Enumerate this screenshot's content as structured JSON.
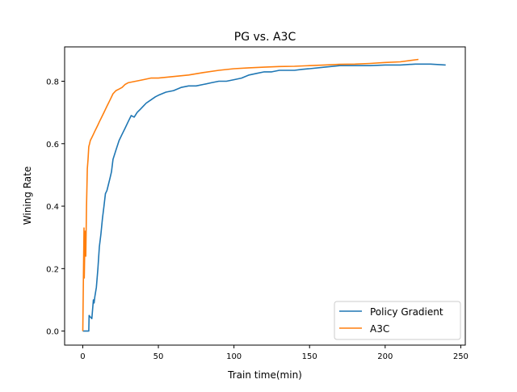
{
  "chart_data": {
    "type": "line",
    "title": "PG vs. A3C",
    "xlabel": "Train time(min)",
    "ylabel": "Wining Rate",
    "xlim": [
      -12,
      253
    ],
    "ylim": [
      -0.045,
      0.91
    ],
    "xticks": [
      0,
      50,
      100,
      150,
      200,
      250
    ],
    "xtick_labels": [
      "0",
      "50",
      "100",
      "150",
      "200",
      "250"
    ],
    "yticks": [
      0.0,
      0.2,
      0.4,
      0.6,
      0.8
    ],
    "ytick_labels": [
      "0.0",
      "0.2",
      "0.4",
      "0.6",
      "0.8"
    ],
    "grid": false,
    "legend": "lower-right",
    "series": [
      {
        "name": "Policy Gradient",
        "color": "#1f77b4",
        "x": [
          0,
          4,
          4.2,
          5,
          6,
          7,
          7.5,
          8,
          9,
          10,
          11,
          12,
          13,
          14,
          15,
          16,
          17,
          18,
          19,
          20,
          22,
          24,
          26,
          28,
          30,
          32,
          34,
          36,
          38,
          40,
          42,
          45,
          48,
          50,
          55,
          60,
          65,
          70,
          75,
          80,
          85,
          90,
          95,
          100,
          105,
          110,
          115,
          120,
          125,
          130,
          135,
          140,
          145,
          150,
          160,
          170,
          180,
          190,
          200,
          210,
          220,
          230,
          240
        ],
        "y": [
          0.0,
          0.0,
          0.05,
          0.045,
          0.04,
          0.1,
          0.09,
          0.11,
          0.14,
          0.2,
          0.27,
          0.31,
          0.36,
          0.4,
          0.44,
          0.45,
          0.47,
          0.49,
          0.51,
          0.55,
          0.58,
          0.61,
          0.63,
          0.65,
          0.67,
          0.69,
          0.685,
          0.7,
          0.71,
          0.72,
          0.73,
          0.74,
          0.75,
          0.755,
          0.765,
          0.77,
          0.78,
          0.785,
          0.785,
          0.79,
          0.795,
          0.8,
          0.8,
          0.805,
          0.81,
          0.82,
          0.825,
          0.83,
          0.83,
          0.835,
          0.835,
          0.835,
          0.838,
          0.84,
          0.845,
          0.85,
          0.85,
          0.85,
          0.852,
          0.852,
          0.855,
          0.855,
          0.852
        ]
      },
      {
        "name": "A3C",
        "color": "#ff7f0e",
        "x": [
          0,
          0.5,
          0.8,
          1,
          1.3,
          1.6,
          2,
          2.5,
          3,
          3.5,
          4,
          4.5,
          5,
          6,
          7,
          8,
          9,
          10,
          11,
          12,
          13,
          14,
          15,
          16,
          18,
          20,
          22,
          24,
          26,
          28,
          30,
          35,
          40,
          45,
          50,
          60,
          70,
          80,
          90,
          100,
          110,
          120,
          130,
          140,
          150,
          160,
          170,
          180,
          190,
          200,
          210,
          222
        ],
        "y": [
          0.0,
          0.2,
          0.33,
          0.17,
          0.26,
          0.32,
          0.24,
          0.4,
          0.52,
          0.55,
          0.59,
          0.6,
          0.61,
          0.62,
          0.63,
          0.64,
          0.65,
          0.66,
          0.67,
          0.68,
          0.69,
          0.7,
          0.71,
          0.72,
          0.74,
          0.76,
          0.77,
          0.775,
          0.78,
          0.79,
          0.795,
          0.8,
          0.805,
          0.81,
          0.81,
          0.815,
          0.82,
          0.828,
          0.835,
          0.84,
          0.843,
          0.845,
          0.847,
          0.848,
          0.85,
          0.852,
          0.854,
          0.855,
          0.857,
          0.86,
          0.862,
          0.87
        ]
      }
    ]
  }
}
